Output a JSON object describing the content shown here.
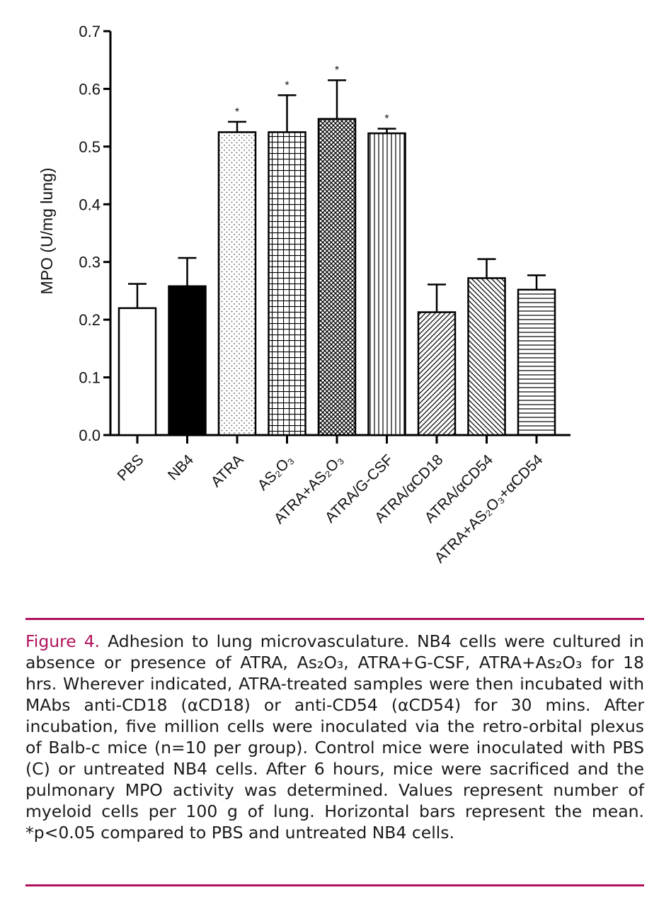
{
  "colors": {
    "accent": "#b0125a",
    "bar_stroke": "#000000",
    "text": "#1a1a1a"
  },
  "chart_data": {
    "type": "bar",
    "ylabel": "MPO (U/mg lung)",
    "ylim": [
      0,
      0.7
    ],
    "yticks": [
      "0.0",
      "0.1",
      "0.2",
      "0.3",
      "0.4",
      "0.5",
      "0.6",
      "0.7"
    ],
    "categories": [
      "PBS",
      "NB4",
      "ATRA",
      "AS₂O₃",
      "ATRA+AS₂O₃",
      "ATRA/G-CSF",
      "ATRA/αCD18",
      "ATRA/αCD54",
      "ATRA+AS₂O₃+αCD54"
    ],
    "values": [
      0.22,
      0.258,
      0.525,
      0.525,
      0.548,
      0.523,
      0.213,
      0.272,
      0.252
    ],
    "errors": [
      0.042,
      0.049,
      0.018,
      0.064,
      0.067,
      0.008,
      0.048,
      0.033,
      0.025
    ],
    "patterns": [
      "blank",
      "solid",
      "dots",
      "grid",
      "crosshatch",
      "vertical",
      "diagonal-right",
      "diagonal-left",
      "horizontal"
    ],
    "significance": [
      "",
      "",
      "*",
      "*",
      "*",
      "*",
      "",
      "",
      ""
    ],
    "grid": false,
    "legend": "none"
  },
  "caption": {
    "label": "Figure 4.",
    "body": "Adhesion to lung microvasculature. NB4 cells were cultured in absence or presence of ATRA, As₂O₃, ATRA+G-CSF, ATRA+As₂O₃ for 18 hrs. Wherever indicated, ATRA-treated samples were then incubated with MAbs anti-CD18 (αCD18) or anti-CD54 (αCD54) for 30 mins. After incubation, five million cells were inoculated via the retro-orbital plexus of Balb-c mice (n=10 per group). Control mice were inoculated with PBS (C) or untreated NB4 cells. After 6 hours, mice were sacrificed and the pulmonary MPO activity was determined. Values represent number of myeloid cells per 100 g of lung. Horizontal bars represent the mean. *p<0.05 compared to PBS and untreated NB4 cells."
  }
}
